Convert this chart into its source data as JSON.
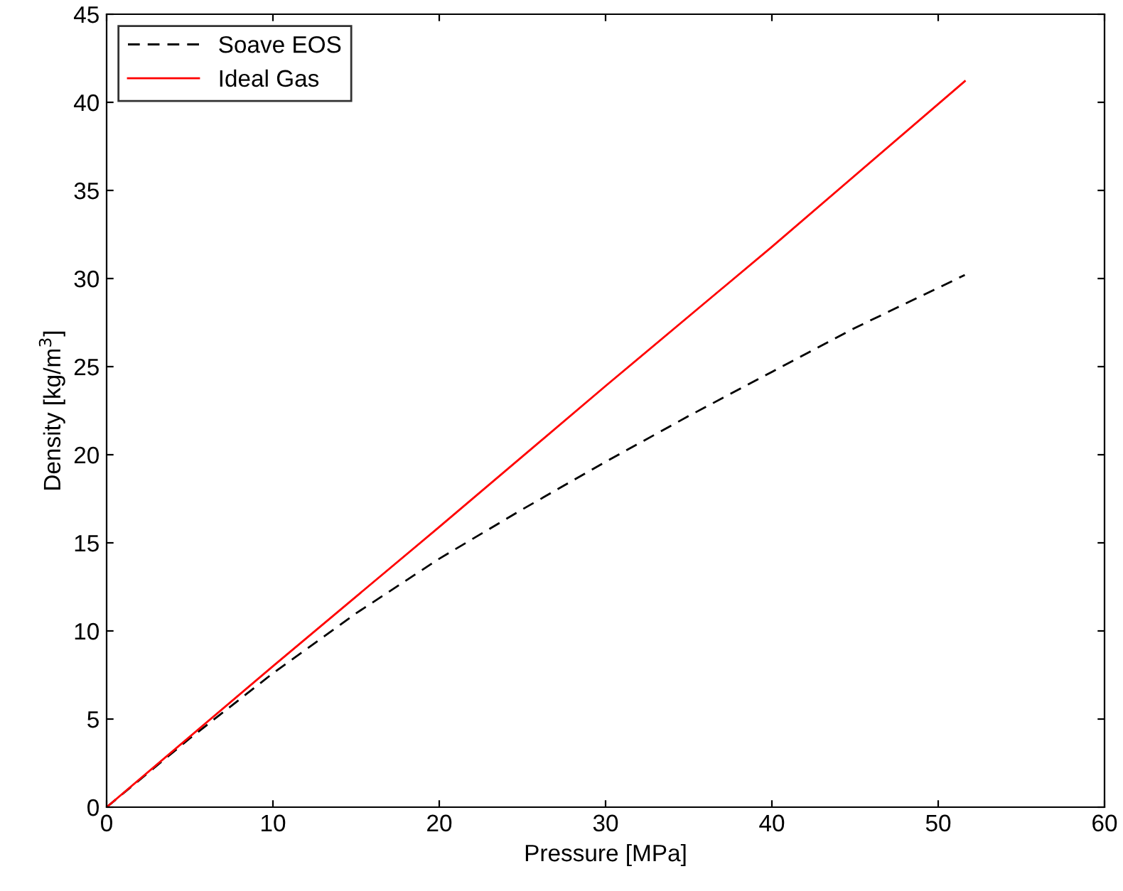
{
  "chart_data": {
    "type": "line",
    "xlabel": "Pressure [MPa]",
    "ylabel": "Density [kg/m$^{3}$]",
    "xlim": [
      0,
      60
    ],
    "ylim": [
      0,
      45
    ],
    "xticks": [
      0,
      10,
      20,
      30,
      40,
      50,
      60
    ],
    "yticks": [
      0,
      5,
      10,
      15,
      20,
      25,
      30,
      35,
      40,
      45
    ],
    "grid": false,
    "legend": "top left",
    "series": [
      {
        "name": "Soave EOS",
        "color": "#000000",
        "line_style": "dashed",
        "x": [
          0,
          5,
          10,
          15,
          20,
          25,
          30,
          35,
          40,
          45,
          51.6
        ],
        "values": [
          0,
          3.9,
          7.6,
          11.0,
          14.1,
          16.9,
          19.6,
          22.2,
          24.7,
          27.2,
          30.2
        ]
      },
      {
        "name": "Ideal Gas",
        "color": "#ff0000",
        "line_style": "solid",
        "x": [
          0,
          10,
          20,
          30,
          40,
          51.6
        ],
        "values": [
          0,
          8.0,
          15.9,
          23.9,
          31.8,
          41.2
        ]
      }
    ]
  }
}
